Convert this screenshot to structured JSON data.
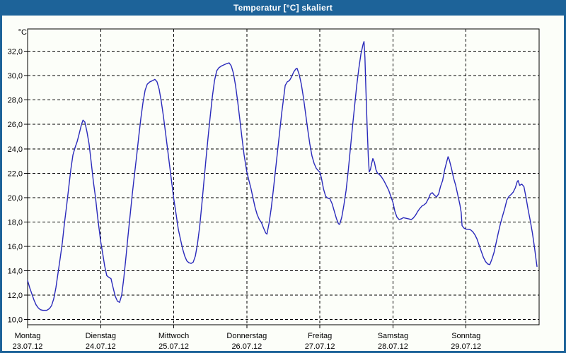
{
  "window": {
    "title": "Temperatur [°C] skaliert"
  },
  "colors": {
    "titlebar": "#1d6399",
    "window_border": "#1d6399",
    "content_background": "#fcfef9",
    "grid": "#000000",
    "curve": "#2a2abb",
    "title_text": "#ffffff",
    "axis_text": "#000000"
  },
  "chart_data": {
    "type": "line",
    "title": "Temperatur [°C] skaliert",
    "ylabel": "°C",
    "xlabel": "",
    "grid": "on",
    "legend": "none",
    "ylim": [
      10,
      32
    ],
    "y_tick_step": 2,
    "y_tick_format": "decimal-comma-1",
    "x_range_hours": [
      0,
      168
    ],
    "x_days": [
      {
        "name": "Montag",
        "date": "23.07.12"
      },
      {
        "name": "Dienstag",
        "date": "24.07.12"
      },
      {
        "name": "Mittwoch",
        "date": "25.07.12"
      },
      {
        "name": "Donnerstag",
        "date": "26.07.12"
      },
      {
        "name": "Freitag",
        "date": "27.07.12"
      },
      {
        "name": "Samstag",
        "date": "28.07.12"
      },
      {
        "name": "Sonntag",
        "date": "29.07.12"
      }
    ],
    "series": [
      {
        "name": "Temperatur",
        "color": "#2a2abb",
        "points": [
          [
            0,
            13.2
          ],
          [
            0.7,
            12.6
          ],
          [
            1.4,
            12.1
          ],
          [
            2.1,
            11.6
          ],
          [
            2.8,
            11.2
          ],
          [
            3.5,
            10.95
          ],
          [
            4.2,
            10.8
          ],
          [
            5,
            10.75
          ],
          [
            6.3,
            10.75
          ],
          [
            7.2,
            10.9
          ],
          [
            7.9,
            11.15
          ],
          [
            8.6,
            11.7
          ],
          [
            9.3,
            12.6
          ],
          [
            10,
            13.8
          ],
          [
            10.7,
            15
          ],
          [
            11.4,
            16.3
          ],
          [
            12.1,
            17.9
          ],
          [
            12.8,
            19.3
          ],
          [
            13.5,
            20.8
          ],
          [
            14.2,
            22.3
          ],
          [
            14.9,
            23.5
          ],
          [
            15.6,
            24.1
          ],
          [
            16.3,
            24.6
          ],
          [
            17,
            25.3
          ],
          [
            17.7,
            26
          ],
          [
            18.2,
            26.35
          ],
          [
            18.8,
            26.2
          ],
          [
            19.5,
            25.4
          ],
          [
            20.2,
            24.4
          ],
          [
            20.9,
            22.9
          ],
          [
            21.6,
            21.3
          ],
          [
            22.3,
            20
          ],
          [
            23,
            18.4
          ],
          [
            23.7,
            17
          ],
          [
            24,
            16.4
          ],
          [
            24.6,
            15.5
          ],
          [
            25.3,
            14.4
          ],
          [
            26,
            13.6
          ],
          [
            26.7,
            13.45
          ],
          [
            27.4,
            13.35
          ],
          [
            28.1,
            12.6
          ],
          [
            28.8,
            11.9
          ],
          [
            29.5,
            11.5
          ],
          [
            30.2,
            11.4
          ],
          [
            30.9,
            12
          ],
          [
            31.6,
            13.4
          ],
          [
            32.3,
            15.1
          ],
          [
            33,
            16.9
          ],
          [
            33.7,
            18.6
          ],
          [
            34.4,
            20.3
          ],
          [
            35.1,
            21.9
          ],
          [
            35.8,
            23.4
          ],
          [
            36.5,
            25
          ],
          [
            37.2,
            26.5
          ],
          [
            37.9,
            27.8
          ],
          [
            38.6,
            28.8
          ],
          [
            39.3,
            29.3
          ],
          [
            40.2,
            29.5
          ],
          [
            41.1,
            29.6
          ],
          [
            41.8,
            29.7
          ],
          [
            42.5,
            29.5
          ],
          [
            43.2,
            28.9
          ],
          [
            43.9,
            27.9
          ],
          [
            44.6,
            26.7
          ],
          [
            45.3,
            25.3
          ],
          [
            46,
            23.9
          ],
          [
            46.7,
            22.5
          ],
          [
            47.4,
            21.1
          ],
          [
            48,
            19.9
          ],
          [
            48.8,
            18.6
          ],
          [
            49.5,
            17.4
          ],
          [
            50.2,
            16.6
          ],
          [
            50.9,
            15.8
          ],
          [
            51.6,
            15.2
          ],
          [
            52.3,
            14.8
          ],
          [
            53,
            14.65
          ],
          [
            53.7,
            14.6
          ],
          [
            54.4,
            14.7
          ],
          [
            55.1,
            15.2
          ],
          [
            55.8,
            16.2
          ],
          [
            56.5,
            17.6
          ],
          [
            57.2,
            19.4
          ],
          [
            57.9,
            21.3
          ],
          [
            58.6,
            23.2
          ],
          [
            59.3,
            25
          ],
          [
            60,
            26.7
          ],
          [
            60.7,
            28.3
          ],
          [
            61.4,
            29.6
          ],
          [
            62.1,
            30.4
          ],
          [
            62.8,
            30.65
          ],
          [
            63.7,
            30.8
          ],
          [
            64.6,
            30.9
          ],
          [
            65.5,
            31
          ],
          [
            66.2,
            31.05
          ],
          [
            66.9,
            30.8
          ],
          [
            67.6,
            30.2
          ],
          [
            68.3,
            29.2
          ],
          [
            69,
            27.9
          ],
          [
            69.7,
            26.4
          ],
          [
            70.4,
            24.9
          ],
          [
            71.1,
            23.5
          ],
          [
            72,
            22.1
          ],
          [
            72.6,
            21.5
          ],
          [
            73.3,
            20.8
          ],
          [
            74,
            20
          ],
          [
            74.7,
            19.2
          ],
          [
            75.4,
            18.6
          ],
          [
            76.1,
            18.2
          ],
          [
            76.8,
            17.95
          ],
          [
            77.5,
            17.5
          ],
          [
            78.2,
            17.1
          ],
          [
            78.6,
            17
          ],
          [
            79.3,
            17.9
          ],
          [
            80,
            19.1
          ],
          [
            80.7,
            20.6
          ],
          [
            81.4,
            22.2
          ],
          [
            82.1,
            23.8
          ],
          [
            82.8,
            25.4
          ],
          [
            83.5,
            27
          ],
          [
            84.2,
            28.4
          ],
          [
            84.6,
            29.2
          ],
          [
            85.3,
            29.5
          ],
          [
            86,
            29.6
          ],
          [
            86.7,
            29.9
          ],
          [
            87.4,
            30.3
          ],
          [
            88.1,
            30.55
          ],
          [
            88.5,
            30.6
          ],
          [
            89.2,
            30.1
          ],
          [
            89.9,
            29.3
          ],
          [
            90.6,
            28.2
          ],
          [
            91.3,
            26.9
          ],
          [
            92,
            25.6
          ],
          [
            92.7,
            24.4
          ],
          [
            93.4,
            23.4
          ],
          [
            94.1,
            22.8
          ],
          [
            94.8,
            22.4
          ],
          [
            95.5,
            22.2
          ],
          [
            96,
            22.1
          ],
          [
            96.5,
            21.6
          ],
          [
            97.2,
            20.7
          ],
          [
            97.9,
            20.1
          ],
          [
            98.6,
            19.95
          ],
          [
            99.3,
            19.9
          ],
          [
            100,
            19.5
          ],
          [
            100.7,
            18.9
          ],
          [
            101.4,
            18.3
          ],
          [
            102.1,
            17.85
          ],
          [
            102.5,
            17.8
          ],
          [
            103.2,
            18.4
          ],
          [
            103.9,
            19.4
          ],
          [
            104.6,
            20.6
          ],
          [
            105.3,
            22.2
          ],
          [
            106,
            24
          ],
          [
            106.7,
            25.8
          ],
          [
            107.4,
            27.5
          ],
          [
            108.1,
            29.2
          ],
          [
            108.8,
            30.6
          ],
          [
            109.5,
            31.8
          ],
          [
            110.2,
            32.6
          ],
          [
            110.5,
            32.8
          ],
          [
            110.8,
            31.5
          ],
          [
            111.1,
            29
          ],
          [
            111.5,
            26
          ],
          [
            111.9,
            23.3
          ],
          [
            112.2,
            22.1
          ],
          [
            112.6,
            22.3
          ],
          [
            113,
            22.8
          ],
          [
            113.4,
            23.2
          ],
          [
            113.9,
            22.9
          ],
          [
            114.4,
            22.3
          ],
          [
            114.9,
            22
          ],
          [
            115.5,
            21.9
          ],
          [
            116.2,
            21.7
          ],
          [
            117,
            21.4
          ],
          [
            117.8,
            21
          ],
          [
            118.6,
            20.6
          ],
          [
            119.3,
            20.1
          ],
          [
            120,
            19.6
          ],
          [
            120.6,
            18.9
          ],
          [
            121.3,
            18.4
          ],
          [
            122,
            18.2
          ],
          [
            122.7,
            18.25
          ],
          [
            123.4,
            18.35
          ],
          [
            124.3,
            18.3
          ],
          [
            125.2,
            18.25
          ],
          [
            126,
            18.2
          ],
          [
            126.6,
            18.3
          ],
          [
            127.4,
            18.55
          ],
          [
            128.1,
            18.85
          ],
          [
            128.8,
            19.1
          ],
          [
            129.5,
            19.3
          ],
          [
            130.2,
            19.4
          ],
          [
            130.9,
            19.55
          ],
          [
            131.6,
            19.9
          ],
          [
            132.3,
            20.3
          ],
          [
            132.9,
            20.4
          ],
          [
            133.6,
            20.2
          ],
          [
            134.3,
            20.05
          ],
          [
            135,
            20.3
          ],
          [
            135.6,
            20.9
          ],
          [
            136.3,
            21.4
          ],
          [
            137,
            22.3
          ],
          [
            137.6,
            22.9
          ],
          [
            138.1,
            23.35
          ],
          [
            138.5,
            23.1
          ],
          [
            139.2,
            22.4
          ],
          [
            139.9,
            21.6
          ],
          [
            140.6,
            21
          ],
          [
            141.3,
            20.2
          ],
          [
            142,
            19.4
          ],
          [
            142.4,
            18.8
          ],
          [
            142.7,
            17.7
          ],
          [
            143.3,
            17.5
          ],
          [
            144,
            17.4
          ],
          [
            144.8,
            17.4
          ],
          [
            145.5,
            17.35
          ],
          [
            146.2,
            17.2
          ],
          [
            146.9,
            16.95
          ],
          [
            147.6,
            16.6
          ],
          [
            148.3,
            16.1
          ],
          [
            149,
            15.6
          ],
          [
            149.7,
            15.1
          ],
          [
            150.4,
            14.75
          ],
          [
            151.1,
            14.55
          ],
          [
            151.8,
            14.5
          ],
          [
            152.5,
            14.95
          ],
          [
            153.2,
            15.5
          ],
          [
            153.9,
            16.3
          ],
          [
            154.6,
            17.1
          ],
          [
            155.3,
            17.85
          ],
          [
            156,
            18.5
          ],
          [
            156.7,
            19.1
          ],
          [
            157.4,
            19.8
          ],
          [
            158.1,
            20.1
          ],
          [
            158.8,
            20.25
          ],
          [
            159.5,
            20.45
          ],
          [
            160.2,
            20.8
          ],
          [
            160.8,
            21.3
          ],
          [
            161.1,
            21.4
          ],
          [
            161.6,
            21
          ],
          [
            162.3,
            21.1
          ],
          [
            163,
            20.9
          ],
          [
            163.7,
            20
          ],
          [
            164.4,
            19
          ],
          [
            165.1,
            18.1
          ],
          [
            165.8,
            17.1
          ],
          [
            166.5,
            15.9
          ],
          [
            167,
            14.9
          ],
          [
            167.3,
            14.35
          ]
        ]
      }
    ]
  }
}
